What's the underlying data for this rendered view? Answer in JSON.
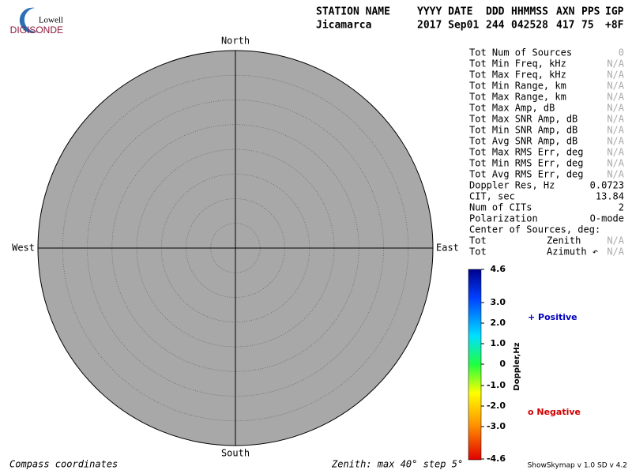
{
  "logo": {
    "top": "Lowell",
    "bottom": "DIGISONDE"
  },
  "header": {
    "labels": [
      "STATION NAME",
      "YYYY DATE",
      "DDD",
      "HHMMSS",
      "AXN",
      "PPS",
      "IGP"
    ],
    "values": [
      "Jicamarca",
      "2017 Sep01",
      "244",
      "042528",
      "417",
      "75",
      "+8F"
    ]
  },
  "compass": {
    "north": "North",
    "south": "South",
    "east": "East",
    "west": "West"
  },
  "stats": {
    "rows": [
      [
        "Tot Num of Sources",
        "0"
      ],
      [
        "Tot Min Freq, kHz",
        "N/A"
      ],
      [
        "Tot Max Freq, kHz",
        "N/A"
      ],
      [
        "Tot Min Range, km",
        "N/A"
      ],
      [
        "Tot Max Range, km",
        "N/A"
      ],
      [
        "Tot Max Amp, dB",
        "N/A"
      ],
      [
        "Tot Max SNR Amp, dB",
        "N/A"
      ],
      [
        "Tot Min SNR Amp, dB",
        "N/A"
      ],
      [
        "Tot Avg SNR Amp, dB",
        "N/A"
      ],
      [
        "Tot Max RMS Err, deg",
        "N/A"
      ],
      [
        "Tot Min RMS Err, deg",
        "N/A"
      ],
      [
        "Tot Avg RMS Err, deg",
        "N/A"
      ],
      [
        "Doppler Res, Hz",
        "0.0723"
      ],
      [
        "CIT, sec",
        "13.84"
      ],
      [
        "Num of CITs",
        "2"
      ],
      [
        "Polarization",
        "O-mode"
      ],
      [
        "Center of Sources, deg:"
      ],
      [
        "Tot",
        "Zenith",
        "N/A"
      ],
      [
        "Tot",
        "Azimuth ↶",
        "N/A"
      ]
    ]
  },
  "colorbar": {
    "title": "Doppler,Hz",
    "ticks": [
      "4.6",
      "3.0",
      "2.0",
      "1.0",
      "0",
      "-1.0",
      "-2.0",
      "-3.0",
      "-4.6"
    ]
  },
  "legend": {
    "positive": "+ Positive",
    "negative": "o Negative"
  },
  "footer": {
    "left": "Compass coordinates",
    "center": "Zenith: max 40°  step 5°",
    "right": "ShowSkymap v 1.0  SD v 4.2"
  }
}
